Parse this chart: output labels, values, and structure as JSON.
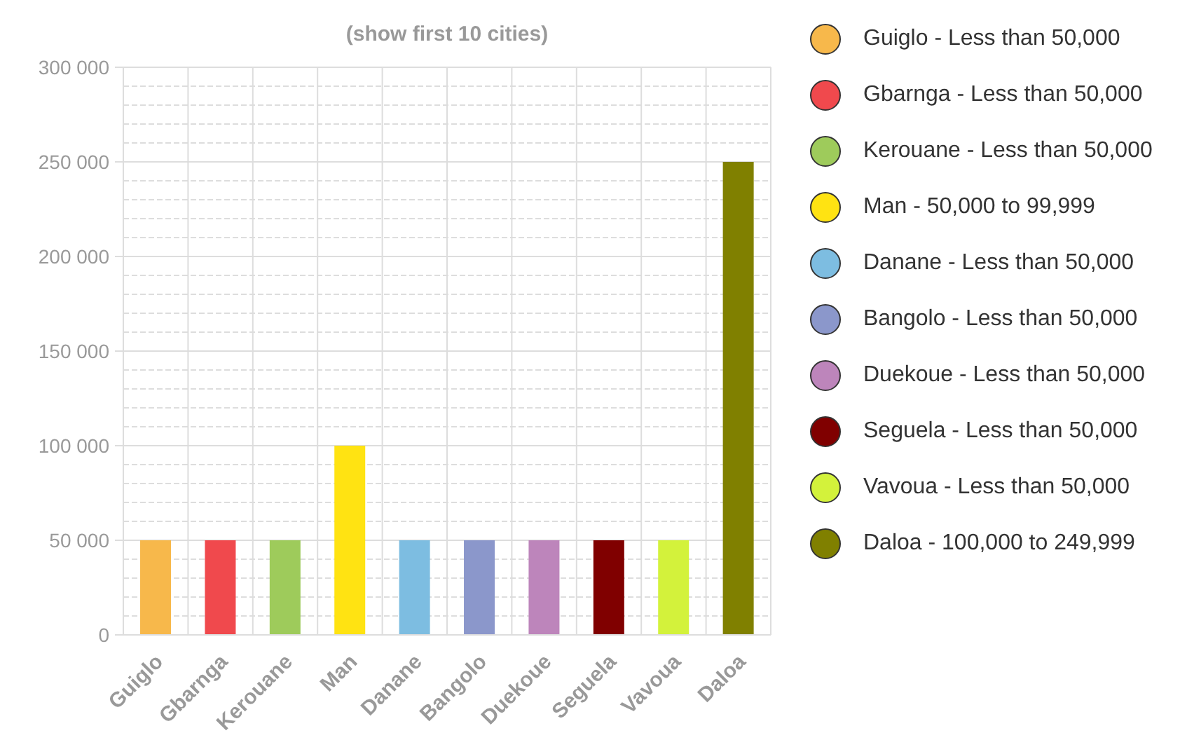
{
  "chart_data": {
    "type": "bar",
    "title": "(show first 10 cities)",
    "categories": [
      "Guiglo",
      "Gbarnga",
      "Kerouane",
      "Man",
      "Danane",
      "Bangolo",
      "Duekoue",
      "Seguela",
      "Vavoua",
      "Daloa"
    ],
    "stacked": true,
    "series": [
      {
        "name": "Guiglo - Less than 50,000",
        "color": "#f7b84b",
        "values": [
          50000,
          null,
          null,
          null,
          null,
          null,
          null,
          null,
          null,
          null
        ]
      },
      {
        "name": "Gbarnga - Less than 50,000",
        "color": "#f0494d",
        "values": [
          null,
          50000,
          null,
          null,
          null,
          null,
          null,
          null,
          null,
          null
        ]
      },
      {
        "name": "Kerouane - Less than 50,000",
        "color": "#9ecb5b",
        "values": [
          null,
          null,
          50000,
          null,
          null,
          null,
          null,
          null,
          null,
          null
        ]
      },
      {
        "name": "Man - 50,000 to 99,999",
        "color": "#ffe312",
        "values": [
          null,
          null,
          null,
          100000,
          null,
          null,
          null,
          null,
          null,
          null
        ]
      },
      {
        "name": "Danane - Less than 50,000",
        "color": "#7dbde1",
        "values": [
          null,
          null,
          null,
          null,
          50000,
          null,
          null,
          null,
          null,
          null
        ]
      },
      {
        "name": "Bangolo - Less than 50,000",
        "color": "#8b97cb",
        "values": [
          null,
          null,
          null,
          null,
          null,
          50000,
          null,
          null,
          null,
          null
        ]
      },
      {
        "name": "Duekoue - Less than 50,000",
        "color": "#bd85bb",
        "values": [
          null,
          null,
          null,
          null,
          null,
          null,
          50000,
          null,
          null,
          null
        ]
      },
      {
        "name": "Seguela - Less than 50,000",
        "color": "#800000",
        "values": [
          null,
          null,
          null,
          null,
          null,
          null,
          null,
          50000,
          null,
          null
        ]
      },
      {
        "name": "Vavoua - Less than 50,000",
        "color": "#d3f23b",
        "values": [
          null,
          null,
          null,
          null,
          null,
          null,
          null,
          null,
          50000,
          null
        ]
      },
      {
        "name": "Daloa - 100,000 to 249,999",
        "color": "#808000",
        "values": [
          null,
          null,
          null,
          null,
          null,
          null,
          null,
          null,
          null,
          250000
        ]
      }
    ],
    "ylim": [
      0,
      300000
    ],
    "yticks": [
      {
        "value": 0,
        "label": "0"
      },
      {
        "value": 10000,
        "label": null
      },
      {
        "value": 20000,
        "label": null
      },
      {
        "value": 30000,
        "label": null
      },
      {
        "value": 40000,
        "label": null
      },
      {
        "value": 50000,
        "label": "50 000"
      },
      {
        "value": 60000,
        "label": null
      },
      {
        "value": 70000,
        "label": null
      },
      {
        "value": 80000,
        "label": null
      },
      {
        "value": 90000,
        "label": null
      },
      {
        "value": 100000,
        "label": "100 000"
      },
      {
        "value": 110000,
        "label": null
      },
      {
        "value": 120000,
        "label": null
      },
      {
        "value": 130000,
        "label": null
      },
      {
        "value": 140000,
        "label": null
      },
      {
        "value": 150000,
        "label": "150 000"
      },
      {
        "value": 160000,
        "label": null
      },
      {
        "value": 170000,
        "label": null
      },
      {
        "value": 180000,
        "label": null
      },
      {
        "value": 190000,
        "label": null
      },
      {
        "value": 200000,
        "label": "200 000"
      },
      {
        "value": 210000,
        "label": null
      },
      {
        "value": 220000,
        "label": null
      },
      {
        "value": 230000,
        "label": null
      },
      {
        "value": 240000,
        "label": null
      },
      {
        "value": 250000,
        "label": "250 000"
      },
      {
        "value": 260000,
        "label": null
      },
      {
        "value": 270000,
        "label": null
      },
      {
        "value": 280000,
        "label": null
      },
      {
        "value": 290000,
        "label": null
      },
      {
        "value": 300000,
        "label": "300 000"
      }
    ],
    "grid": true,
    "legend": "right"
  }
}
